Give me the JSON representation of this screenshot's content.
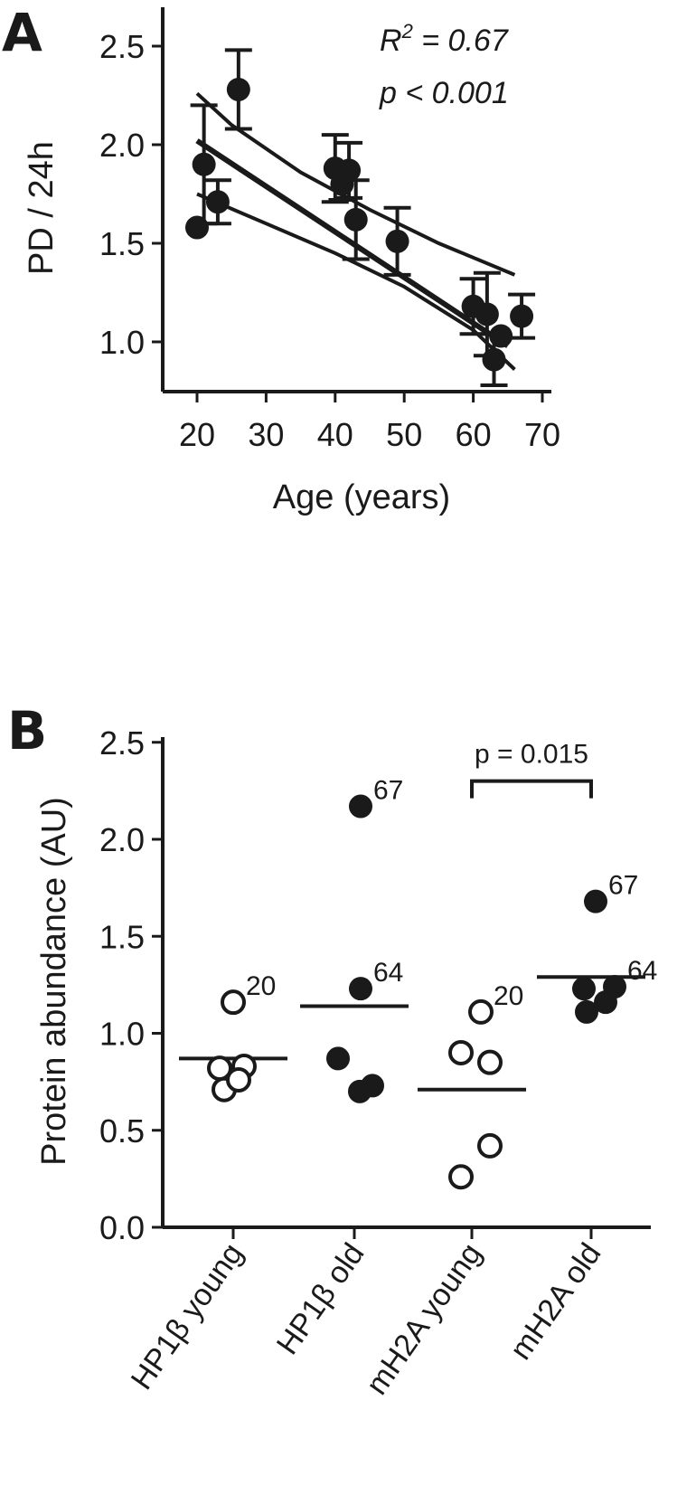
{
  "figure": {
    "panel_a_letter": "A",
    "panel_b_letter": "B"
  },
  "chart_data": [
    {
      "type": "scatter",
      "panel": "A",
      "xlabel": "Age (years)",
      "ylabel": "PD / 24h",
      "xlim": [
        15,
        72
      ],
      "ylim": [
        0.75,
        2.7
      ],
      "x_ticks": [
        20,
        30,
        40,
        50,
        60,
        70
      ],
      "y_ticks": [
        1.0,
        1.5,
        2.0,
        2.5
      ],
      "y_tick_labels": [
        "1.0",
        "1.5",
        "2.0",
        "2.5"
      ],
      "grid": false,
      "annotations": {
        "r2_base": "R",
        "r2_exp": "2",
        "r2_value": " = 0.67",
        "p_text": "p < 0.001"
      },
      "points": [
        {
          "x": 20,
          "y": 1.58,
          "err": 0
        },
        {
          "x": 21,
          "y": 1.9,
          "err": 0.3
        },
        {
          "x": 23,
          "y": 1.71,
          "err": 0.11
        },
        {
          "x": 26,
          "y": 2.28,
          "err": 0.2
        },
        {
          "x": 40,
          "y": 1.88,
          "err": 0.17
        },
        {
          "x": 41,
          "y": 1.8,
          "err": 0.08
        },
        {
          "x": 42,
          "y": 1.87,
          "err": 0.14
        },
        {
          "x": 43,
          "y": 1.62,
          "err": 0.2
        },
        {
          "x": 49,
          "y": 1.51,
          "err": 0.17
        },
        {
          "x": 60,
          "y": 1.18,
          "err": 0.14
        },
        {
          "x": 62,
          "y": 1.14,
          "err": 0.21
        },
        {
          "x": 63,
          "y": 0.91,
          "err": 0.13
        },
        {
          "x": 64,
          "y": 1.03,
          "err": 0
        },
        {
          "x": 67,
          "y": 1.13,
          "err": 0.11
        }
      ],
      "regression": {
        "fit": [
          [
            20,
            2.02
          ],
          [
            65,
            0.98
          ]
        ],
        "upper_ci": [
          [
            20,
            2.26
          ],
          [
            25,
            2.1
          ],
          [
            35,
            1.86
          ],
          [
            45,
            1.67
          ],
          [
            55,
            1.5
          ],
          [
            66,
            1.34
          ]
        ],
        "lower_ci": [
          [
            20,
            1.75
          ],
          [
            30,
            1.6
          ],
          [
            40,
            1.45
          ],
          [
            50,
            1.28
          ],
          [
            60,
            1.06
          ],
          [
            66,
            0.86
          ]
        ]
      }
    },
    {
      "type": "scatter",
      "panel": "B",
      "ylabel": "Protein abundance (AU)",
      "ylim": [
        0,
        2.6
      ],
      "y_ticks": [
        0.0,
        0.5,
        1.0,
        1.5,
        2.0,
        2.5
      ],
      "y_tick_labels": [
        "0.0",
        "0.5",
        "1.0",
        "1.5",
        "2.0",
        "2.5"
      ],
      "grid": false,
      "categories": [
        "HP1β young",
        "HP1β old",
        "mH2A young",
        "mH2A old"
      ],
      "significance": {
        "from": 2,
        "to": 3,
        "label": "p = 0.015",
        "y": 2.3
      },
      "groups": [
        {
          "category": "HP1β young",
          "filled": false,
          "mean": 0.87,
          "points": [
            {
              "dx": 0,
              "y": 1.16,
              "label": "20"
            },
            {
              "dx": -0.15,
              "y": 0.82
            },
            {
              "dx": 0.12,
              "y": 0.83
            },
            {
              "dx": -0.1,
              "y": 0.71
            },
            {
              "dx": 0.06,
              "y": 0.76
            }
          ]
        },
        {
          "category": "HP1β old",
          "filled": true,
          "mean": 1.14,
          "points": [
            {
              "dx": 0.07,
              "y": 2.17,
              "label": "67"
            },
            {
              "dx": 0.07,
              "y": 1.23,
              "label": "64"
            },
            {
              "dx": -0.18,
              "y": 0.87
            },
            {
              "dx": 0.06,
              "y": 0.7
            },
            {
              "dx": 0.2,
              "y": 0.73
            }
          ]
        },
        {
          "category": "mH2A young",
          "filled": false,
          "mean": 0.71,
          "points": [
            {
              "dx": 0.1,
              "y": 1.11,
              "label": "20"
            },
            {
              "dx": -0.12,
              "y": 0.9
            },
            {
              "dx": 0.2,
              "y": 0.85
            },
            {
              "dx": 0.2,
              "y": 0.42
            },
            {
              "dx": -0.12,
              "y": 0.26
            }
          ]
        },
        {
          "category": "mH2A old",
          "filled": true,
          "mean": 1.29,
          "points": [
            {
              "dx": 0.05,
              "y": 1.68,
              "label": "67"
            },
            {
              "dx": -0.08,
              "y": 1.23
            },
            {
              "dx": 0.26,
              "y": 1.24,
              "label": "64"
            },
            {
              "dx": 0.16,
              "y": 1.16
            },
            {
              "dx": -0.05,
              "y": 1.11
            }
          ]
        }
      ]
    }
  ]
}
